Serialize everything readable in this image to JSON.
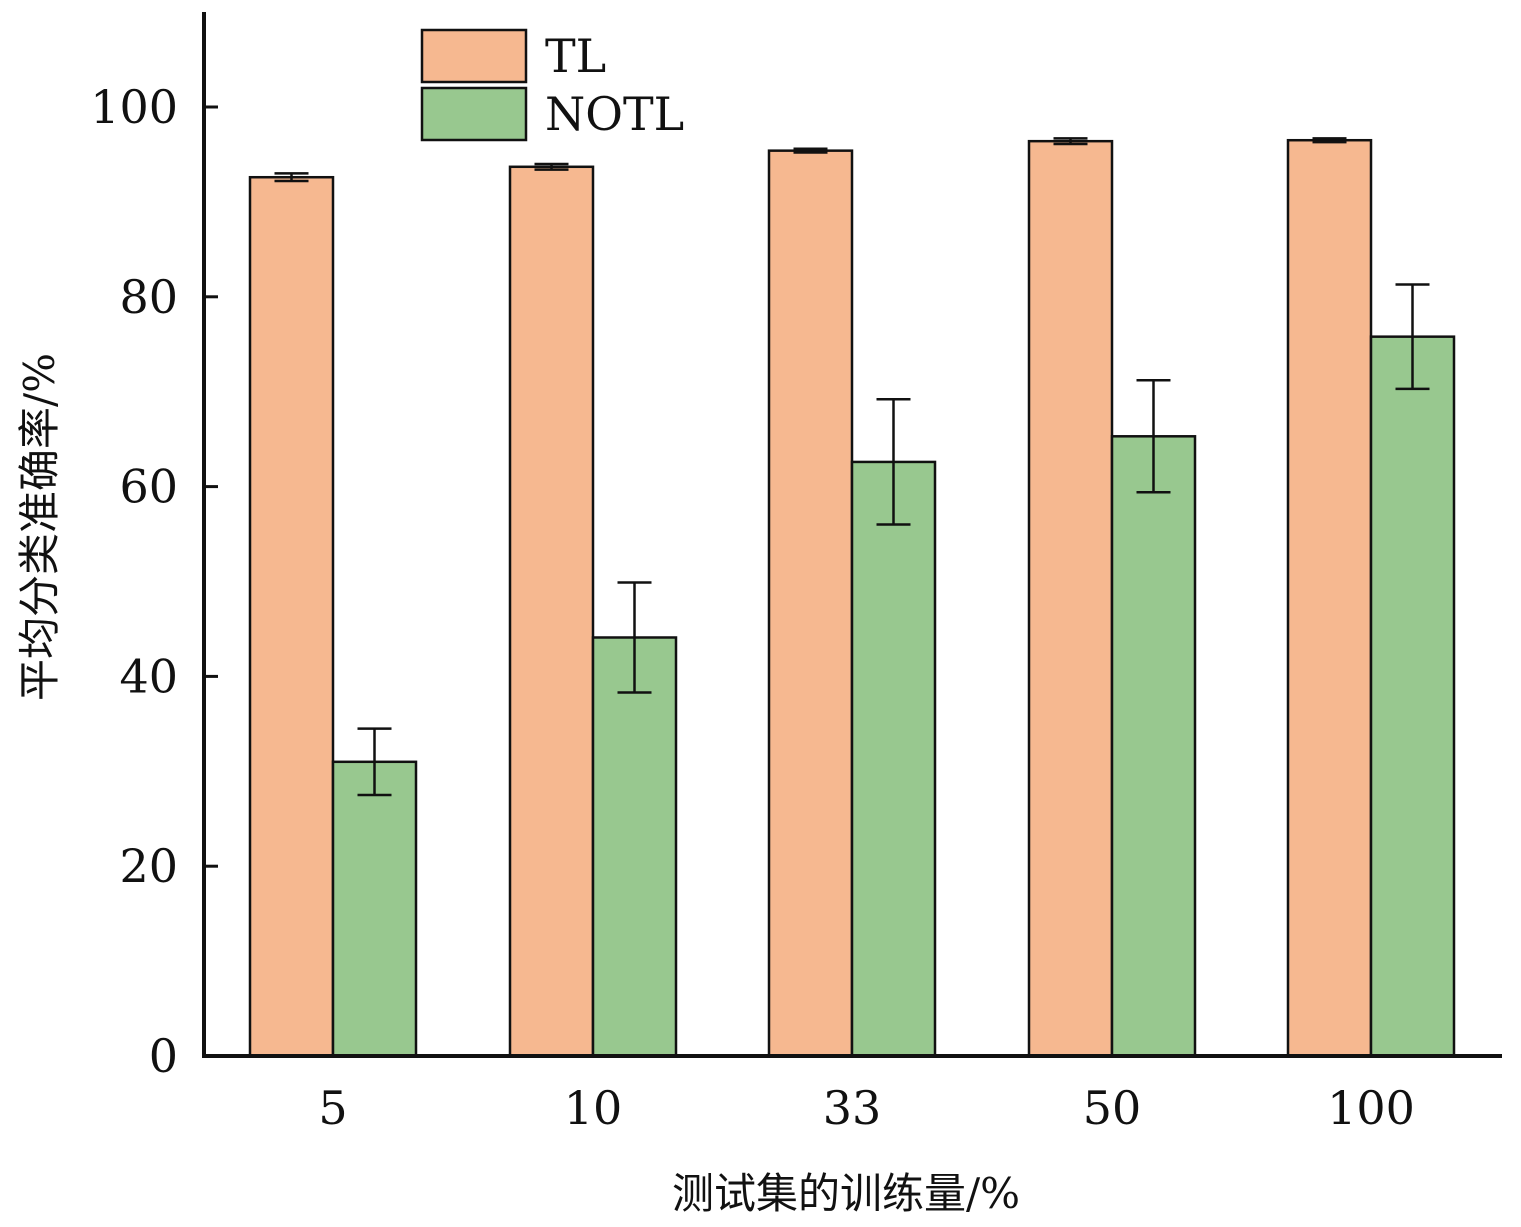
{
  "chart_data": {
    "type": "bar",
    "categories": [
      "5",
      "10",
      "33",
      "50",
      "100"
    ],
    "series": [
      {
        "name": "TL",
        "color": "#f6b890",
        "values": [
          92.6,
          93.7,
          95.4,
          96.4,
          96.5
        ],
        "errors": [
          0.4,
          0.3,
          0.2,
          0.3,
          0.2
        ]
      },
      {
        "name": "NOTL",
        "color": "#98c88f",
        "values": [
          31.0,
          44.1,
          62.6,
          65.3,
          75.8
        ],
        "errors": [
          3.5,
          5.8,
          6.6,
          5.9,
          5.5
        ]
      }
    ],
    "xlabel": "测试集的训练量/%",
    "ylabel": "平均分类准确率/%",
    "ylim": [
      0,
      110
    ],
    "yticks": [
      0,
      20,
      40,
      60,
      80,
      100
    ],
    "grid": false,
    "legend_position": "top-left"
  }
}
